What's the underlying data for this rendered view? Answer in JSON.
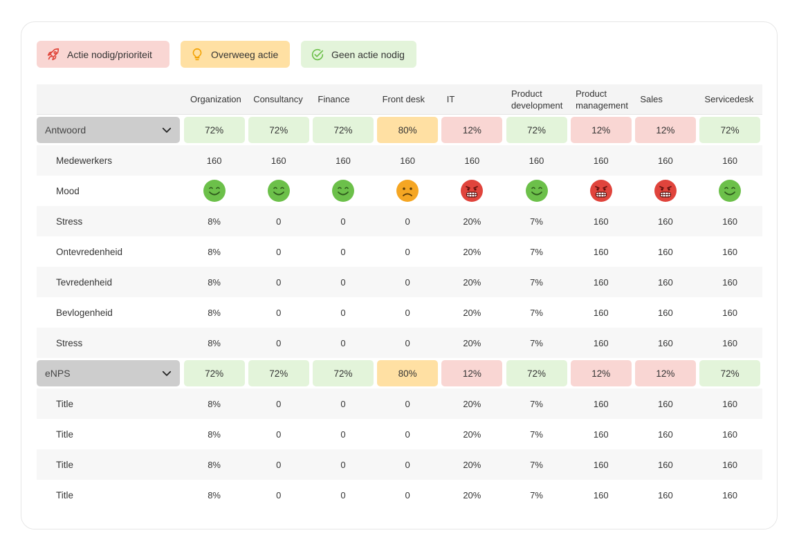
{
  "legend": [
    {
      "label": "Actie nodig/prioriteit",
      "color": "#f9d6d3",
      "icon": "rocket-icon"
    },
    {
      "label": "Overweeg actie",
      "color": "#ffe0a3",
      "icon": "lightbulb-icon"
    },
    {
      "label": "Geen actie nodig",
      "color": "#e3f4da",
      "icon": "check-circle-icon"
    }
  ],
  "columns": [
    "Organization",
    "Consultancy",
    "Finance",
    "Front desk",
    "IT",
    "Product development",
    "Product management",
    "Sales",
    "Servicedesk"
  ],
  "groups": [
    {
      "title": "Antwoord",
      "summary": [
        {
          "value": "72%",
          "status": "g"
        },
        {
          "value": "72%",
          "status": "g"
        },
        {
          "value": "72%",
          "status": "g"
        },
        {
          "value": "80%",
          "status": "o"
        },
        {
          "value": "12%",
          "status": "r"
        },
        {
          "value": "72%",
          "status": "g"
        },
        {
          "value": "12%",
          "status": "r"
        },
        {
          "value": "12%",
          "status": "r"
        },
        {
          "value": "72%",
          "status": "g"
        }
      ],
      "rows": [
        {
          "label": "Medewerkers",
          "values": [
            "160",
            "160",
            "160",
            "160",
            "160",
            "160",
            "160",
            "160",
            "160"
          ]
        },
        {
          "label": "Mood",
          "moods": [
            "happy",
            "happy",
            "happy",
            "sad",
            "angry",
            "happy",
            "angry",
            "angry",
            "happy"
          ]
        },
        {
          "label": "Stress",
          "values": [
            "8%",
            "0",
            "0",
            "0",
            "20%",
            "7%",
            "160",
            "160",
            "160"
          ]
        },
        {
          "label": "Ontevredenheid",
          "values": [
            "8%",
            "0",
            "0",
            "0",
            "20%",
            "7%",
            "160",
            "160",
            "160"
          ]
        },
        {
          "label": "Tevredenheid",
          "values": [
            "8%",
            "0",
            "0",
            "0",
            "20%",
            "7%",
            "160",
            "160",
            "160"
          ]
        },
        {
          "label": "Bevlogenheid",
          "values": [
            "8%",
            "0",
            "0",
            "0",
            "20%",
            "7%",
            "160",
            "160",
            "160"
          ]
        },
        {
          "label": "Stress",
          "values": [
            "8%",
            "0",
            "0",
            "0",
            "20%",
            "7%",
            "160",
            "160",
            "160"
          ]
        }
      ]
    },
    {
      "title": "eNPS",
      "summary": [
        {
          "value": "72%",
          "status": "g"
        },
        {
          "value": "72%",
          "status": "g"
        },
        {
          "value": "72%",
          "status": "g"
        },
        {
          "value": "80%",
          "status": "o"
        },
        {
          "value": "12%",
          "status": "r"
        },
        {
          "value": "72%",
          "status": "g"
        },
        {
          "value": "12%",
          "status": "r"
        },
        {
          "value": "12%",
          "status": "r"
        },
        {
          "value": "72%",
          "status": "g"
        }
      ],
      "rows": [
        {
          "label": "Title",
          "values": [
            "8%",
            "0",
            "0",
            "0",
            "20%",
            "7%",
            "160",
            "160",
            "160"
          ]
        },
        {
          "label": "Title",
          "values": [
            "8%",
            "0",
            "0",
            "0",
            "20%",
            "7%",
            "160",
            "160",
            "160"
          ]
        },
        {
          "label": "Title",
          "values": [
            "8%",
            "0",
            "0",
            "0",
            "20%",
            "7%",
            "160",
            "160",
            "160"
          ]
        },
        {
          "label": "Title",
          "values": [
            "8%",
            "0",
            "0",
            "0",
            "20%",
            "7%",
            "160",
            "160",
            "160"
          ]
        }
      ]
    }
  ]
}
